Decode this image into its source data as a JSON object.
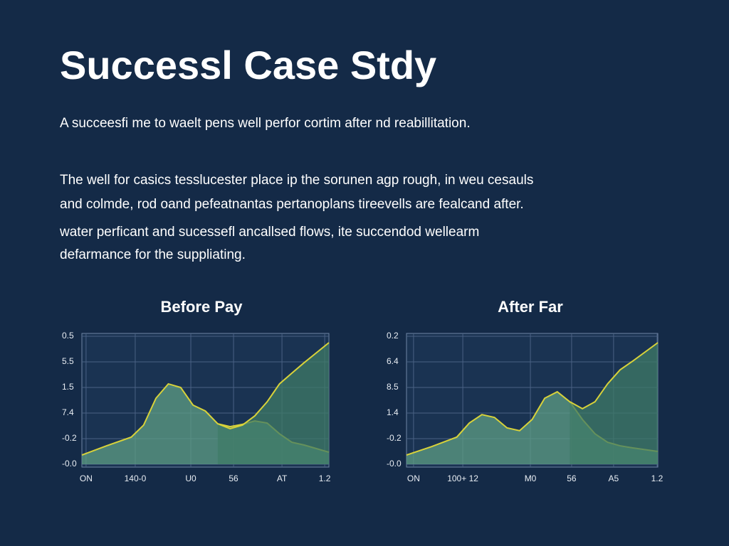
{
  "header": {
    "title": "Successl Case Stdy",
    "subtitle": "A succeesfi me to waelt  pens well perfor cortim after nd reabillitation.",
    "paragraphs": [
      [
        "The well for casics tesslucester place ip the sorunen agp rough, in weu cesauls",
        "and colmde, rod oand pefeatnantas pertanoplans tireevells are fealcand after."
      ],
      [
        "water perficant and sucessefl ancallsed flows, ite succendod wellearm",
        "defarmance for the suppliating."
      ]
    ]
  },
  "chart_data": [
    {
      "type": "area",
      "title": "Before Pay",
      "x": [
        0,
        1,
        2,
        2.5,
        3,
        3.5,
        4,
        4.5,
        5,
        5.5,
        6,
        6.5,
        7,
        7.5,
        8,
        8.5,
        9,
        10
      ],
      "series": [
        {
          "color": "#d8d23a",
          "values": [
            0.36,
            0.72,
            1.06,
            1.53,
            2.58,
            3.14,
            3.0,
            2.31,
            2.08,
            1.58,
            1.47,
            1.56,
            1.69,
            1.61,
            1.19,
            0.86,
            0.75,
            0.47
          ]
        },
        {
          "color": "#d8d23a",
          "values": [
            null,
            null,
            null,
            null,
            null,
            null,
            null,
            null,
            null,
            1.58,
            1.39,
            1.53,
            1.89,
            2.44,
            3.14,
            3.56,
            3.97,
            4.75
          ]
        }
      ],
      "xlim": [
        0,
        10
      ],
      "xticks": [
        {
          "value": 0.17,
          "label": "ON"
        },
        {
          "value": 2.16,
          "label": "140-0"
        },
        {
          "value": 4.41,
          "label": "U0"
        },
        {
          "value": 6.14,
          "label": "56"
        },
        {
          "value": 8.1,
          "label": "AT"
        },
        {
          "value": 9.83,
          "label": "1.2"
        }
      ],
      "ylim": [
        0,
        5
      ],
      "yticks": [
        {
          "value": 5,
          "label": "0.5"
        },
        {
          "value": 4,
          "label": "5.5"
        },
        {
          "value": 3,
          "label": "1.5"
        },
        {
          "value": 2,
          "label": "7.4"
        },
        {
          "value": 1,
          "label": "-0.2"
        },
        {
          "value": 0,
          "label": "-0.0"
        }
      ],
      "grid": true
    },
    {
      "type": "area",
      "title": "After Far",
      "x": [
        0,
        1,
        2,
        2.5,
        3,
        3.5,
        4,
        4.5,
        5,
        5.5,
        6,
        6.5,
        7,
        7.5,
        8,
        8.5,
        9,
        10
      ],
      "series": [
        {
          "color": "#d8d23a",
          "values": [
            0.36,
            0.69,
            1.06,
            1.61,
            1.94,
            1.83,
            1.42,
            1.31,
            1.75,
            2.58,
            2.83,
            2.44,
            1.75,
            1.19,
            0.86,
            0.72,
            0.64,
            0.5
          ]
        },
        {
          "color": "#d8d23a",
          "values": [
            null,
            null,
            null,
            null,
            null,
            null,
            null,
            null,
            null,
            null,
            null,
            2.44,
            2.17,
            2.44,
            3.14,
            3.69,
            4.03,
            4.75
          ]
        }
      ],
      "xlim": [
        0,
        10
      ],
      "xticks": [
        {
          "value": 0.28,
          "label": "ON"
        },
        {
          "value": 2.24,
          "label": "100+  12"
        },
        {
          "value": 4.93,
          "label": "M0"
        },
        {
          "value": 6.57,
          "label": "56"
        },
        {
          "value": 8.24,
          "label": "A5"
        },
        {
          "value": 9.97,
          "label": "1.2"
        }
      ],
      "ylim": [
        0,
        5
      ],
      "yticks": [
        {
          "value": 5,
          "label": "0.2"
        },
        {
          "value": 4,
          "label": "6.4"
        },
        {
          "value": 3,
          "label": "8.5"
        },
        {
          "value": 2,
          "label": "1.4"
        },
        {
          "value": 1,
          "label": "-0.2"
        },
        {
          "value": 0,
          "label": "-0.0"
        }
      ],
      "grid": true
    }
  ]
}
